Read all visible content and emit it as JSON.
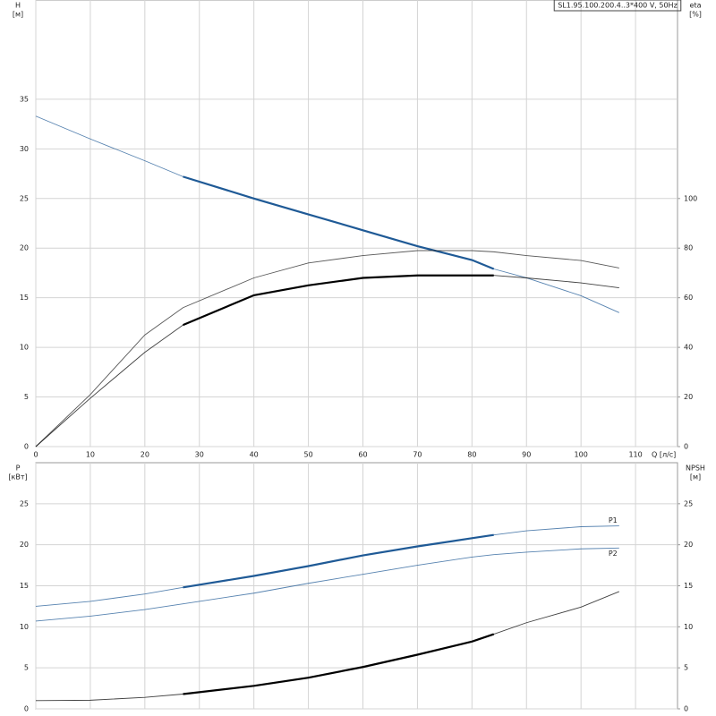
{
  "chart_data": [
    {
      "type": "line",
      "title": "SL1.95.100.200.4..3*400 V, 50Hz",
      "y_label": "H",
      "y_unit": "[м]",
      "y2_label": "eta",
      "y2_unit": "[%]",
      "x_label": "Q [л/с]",
      "x": [
        0,
        10,
        20,
        27,
        40,
        50,
        60,
        70,
        80,
        84,
        90,
        100,
        107
      ],
      "xlim": [
        0,
        117.7
      ],
      "xticks": [
        0,
        10,
        20,
        30,
        40,
        50,
        60,
        70,
        80,
        90,
        100,
        110
      ],
      "xtick_labels": true,
      "ylim": [
        0,
        45
      ],
      "yticks": [
        0,
        5,
        10,
        15,
        20,
        25,
        30,
        35
      ],
      "y2lim": [
        0,
        180
      ],
      "y2ticks": [
        0,
        20,
        40,
        60,
        80,
        100
      ],
      "grid": true,
      "duty_range": [
        27,
        84
      ],
      "series": [
        {
          "color": "#1f5a96",
          "values": [
            33.3,
            31,
            28.8,
            27.2,
            25,
            23.4,
            21.8,
            20.2,
            18.8,
            17.9,
            17,
            15.2,
            13.5
          ],
          "bold": true
        },
        {
          "color": "#222222",
          "axis": "y2",
          "values": [
            0,
            21,
            45,
            56,
            68,
            74,
            77,
            79,
            79,
            78.5,
            77,
            75,
            72
          ],
          "bold": false
        },
        {
          "color": "#000000",
          "axis": "y2",
          "values": [
            0,
            19.5,
            38,
            49,
            61,
            65,
            68,
            69,
            69,
            69,
            68,
            66,
            64
          ],
          "bold": true
        }
      ]
    },
    {
      "type": "line",
      "y_label": "P",
      "y_unit": "[кВт]",
      "y2_label": "NPSH",
      "y2_unit": "[м]",
      "x": [
        0,
        10,
        20,
        27,
        40,
        50,
        60,
        70,
        80,
        84,
        90,
        100,
        107
      ],
      "xlim": [
        0,
        117.7
      ],
      "xticks": [
        0,
        10,
        20,
        30,
        40,
        50,
        60,
        70,
        80,
        90,
        100,
        110
      ],
      "xtick_labels": false,
      "ylim": [
        0,
        30
      ],
      "yticks": [
        0,
        5,
        10,
        15,
        20,
        25
      ],
      "y2lim": [
        0,
        30
      ],
      "y2ticks": [
        0,
        5,
        10,
        15,
        20,
        25
      ],
      "grid": true,
      "duty_range": [
        27,
        84
      ],
      "series": [
        {
          "name": "P1",
          "color": "#1f5a96",
          "values": [
            12.5,
            13.1,
            14,
            14.8,
            16.2,
            17.4,
            18.7,
            19.8,
            20.8,
            21.2,
            21.7,
            22.2,
            22.3
          ],
          "bold": true
        },
        {
          "name": "P2",
          "color": "#1f5a96",
          "values": [
            10.7,
            11.3,
            12.1,
            12.8,
            14.1,
            15.3,
            16.4,
            17.5,
            18.5,
            18.8,
            19.1,
            19.5,
            19.6
          ],
          "bold": false
        },
        {
          "color": "#000000",
          "axis": "y2",
          "values": [
            1,
            1.05,
            1.4,
            1.8,
            2.8,
            3.8,
            5.1,
            6.6,
            8.2,
            9.1,
            10.5,
            12.4,
            14.3
          ],
          "bold": true
        }
      ]
    }
  ]
}
